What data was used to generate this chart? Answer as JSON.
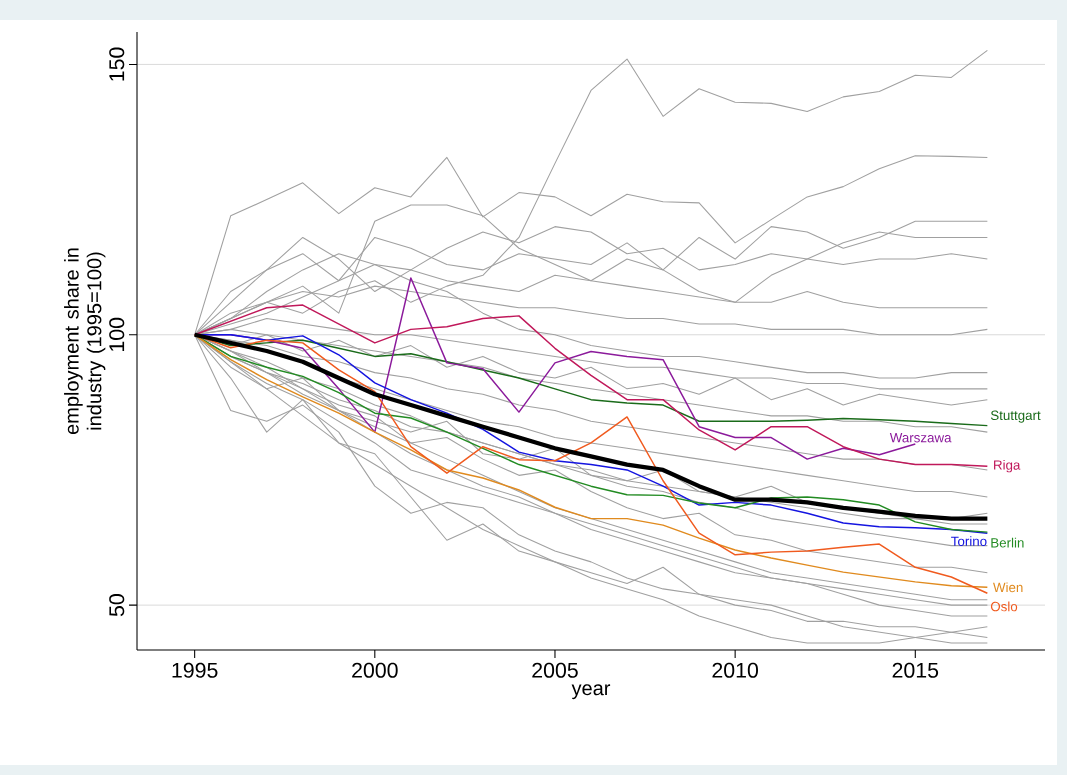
{
  "chart_data": {
    "type": "line",
    "xlabel": "year",
    "ylabel": "employment share in industry (1995=100)",
    "x": [
      1995,
      1996,
      1997,
      1998,
      1999,
      2000,
      2001,
      2002,
      2003,
      2004,
      2005,
      2006,
      2007,
      2008,
      2009,
      2010,
      2011,
      2012,
      2013,
      2014,
      2015,
      2016,
      2017
    ],
    "xlim": [
      1993.4,
      2018.6
    ],
    "ylim": [
      41.7,
      156
    ],
    "xticks": [
      1995,
      2000,
      2005,
      2010,
      2015
    ],
    "yticks": [
      50,
      100,
      150
    ],
    "grid": "y",
    "marker": "none",
    "line_style": "solid",
    "series": [
      {
        "color": "#a0a0a0",
        "values": [
          100,
          103,
          106,
          104,
          108,
          110,
          106,
          109,
          111,
          118,
          131.7,
          145.2,
          151,
          140.4,
          145.5,
          143,
          142.8,
          141.3,
          144,
          145,
          148,
          147.6,
          152.6
        ]
      },
      {
        "color": "#a0a0a0",
        "values": [
          100,
          122,
          125,
          128.1,
          122.4,
          127.2,
          125.5,
          132.8,
          121.8,
          126.3,
          125.5,
          122,
          126,
          124.6,
          124.4,
          117,
          121.3,
          125.5,
          127.4,
          130.7,
          133.1,
          133,
          132.8
        ]
      },
      {
        "color": "#a0a0a0",
        "values": [
          100,
          108,
          112,
          115,
          110,
          118,
          116,
          113,
          112,
          115,
          114,
          113,
          117,
          112,
          118,
          114,
          120,
          119,
          116,
          118,
          121,
          121,
          121
        ]
      },
      {
        "color": "#a0a0a0",
        "values": [
          100,
          104,
          106,
          109,
          104,
          121,
          124,
          124,
          122,
          116,
          113,
          110,
          114,
          112,
          108,
          106,
          111,
          114,
          117,
          119,
          118,
          118,
          118
        ]
      },
      {
        "color": "#a0a0a0",
        "values": [
          100,
          86,
          84,
          87,
          82,
          72,
          67,
          69,
          68,
          63,
          60,
          58,
          55,
          53,
          52,
          51,
          50,
          48,
          46,
          45,
          44,
          43,
          43
        ]
      },
      {
        "color": "#a0a0a0",
        "values": [
          100,
          92,
          82,
          88,
          80,
          78,
          70,
          62,
          65,
          60,
          58,
          56,
          54,
          57,
          52,
          50,
          49,
          47,
          47,
          46,
          46,
          45,
          44
        ]
      },
      {
        "color": "#a0a0a0",
        "values": [
          100,
          95,
          90,
          85,
          80,
          76,
          72,
          68,
          64,
          61,
          58,
          55,
          53,
          51,
          48,
          46,
          44,
          43,
          43,
          43,
          44,
          45,
          46
        ]
      },
      {
        "color": "#a0a0a0",
        "values": [
          100,
          96,
          93,
          89,
          86,
          82,
          78,
          75,
          72,
          70,
          67,
          65,
          63,
          61,
          59,
          57,
          55,
          54,
          53,
          52,
          51,
          50,
          50
        ]
      },
      {
        "color": "#a0a0a0",
        "values": [
          100,
          97,
          95,
          92,
          90,
          87,
          85,
          82,
          80,
          78,
          76,
          74,
          72,
          71,
          69,
          68,
          66,
          65,
          64,
          63,
          62,
          61,
          61
        ]
      },
      {
        "color": "#a0a0a0",
        "values": [
          100,
          99,
          98,
          96,
          95,
          93,
          92,
          90,
          89,
          87,
          86,
          84,
          83,
          82,
          81,
          80,
          79,
          78,
          77,
          77,
          76,
          76,
          75
        ]
      },
      {
        "color": "#a0a0a0",
        "values": [
          100,
          101,
          103,
          102,
          101,
          100,
          100,
          99,
          98,
          97,
          96,
          95,
          94,
          94,
          93,
          92,
          92,
          91,
          91,
          90,
          90,
          90,
          90
        ]
      },
      {
        "color": "#a0a0a0",
        "values": [
          100,
          103,
          106,
          108,
          107,
          109,
          108,
          107,
          106,
          105,
          105,
          104,
          103,
          103,
          102,
          102,
          101,
          101,
          101,
          100,
          100,
          100,
          101
        ]
      },
      {
        "color": "#a0a0a0",
        "values": [
          100,
          98,
          100,
          97,
          99,
          96,
          98,
          94,
          96,
          93,
          92,
          94,
          90,
          91,
          89,
          92,
          88,
          90,
          87,
          89,
          88,
          87,
          88
        ]
      },
      {
        "color": "#a0a0a0",
        "values": [
          100,
          94,
          90,
          92,
          86,
          84,
          82,
          84,
          78,
          77,
          79,
          74,
          73,
          75,
          71,
          70,
          72,
          69,
          68,
          67,
          66,
          66,
          67
        ]
      },
      {
        "color": "#a0a0a0",
        "values": [
          100,
          97,
          94,
          90,
          87,
          85,
          80,
          81,
          77,
          74,
          75,
          71,
          68,
          66,
          67,
          63,
          62,
          60,
          59,
          58,
          57,
          57,
          56
        ]
      },
      {
        "color": "#a0a0a0",
        "values": [
          100,
          102,
          104,
          107,
          110,
          113,
          112,
          116,
          119,
          117,
          120,
          119,
          115,
          116,
          112,
          113,
          115,
          114,
          113,
          114,
          114,
          115,
          114
        ]
      },
      {
        "color": "#a0a0a0",
        "values": [
          100,
          106,
          112,
          118,
          114,
          108,
          112,
          110,
          109,
          108,
          111,
          110,
          109,
          108,
          107,
          106,
          106,
          108,
          106,
          105,
          105,
          105,
          105
        ]
      },
      {
        "color": "#a0a0a0",
        "values": [
          100,
          95,
          91,
          88,
          84,
          80,
          75,
          73,
          71,
          69,
          67,
          64,
          62,
          60,
          58,
          56,
          55,
          54,
          52,
          50,
          49,
          48,
          48
        ]
      },
      {
        "color": "#a0a0a0",
        "values": [
          100,
          99,
          97,
          95,
          92,
          90,
          88,
          86,
          84,
          83,
          81,
          80,
          79,
          78,
          77,
          76,
          75,
          74,
          73,
          72,
          71,
          71,
          70
        ]
      },
      {
        "color": "#a0a0a0",
        "values": [
          100,
          101,
          100,
          99,
          98,
          97,
          96,
          95,
          94,
          92,
          91,
          90,
          89,
          88,
          87,
          86,
          85,
          85,
          84,
          84,
          83,
          83,
          82
        ]
      },
      {
        "color": "#a0a0a0",
        "values": [
          100,
          97,
          93,
          90,
          86,
          83,
          80,
          77,
          74,
          71,
          68,
          66,
          64,
          62,
          60,
          58,
          56,
          55,
          54,
          53,
          52,
          51,
          51
        ]
      },
      {
        "color": "#a0a0a0",
        "values": [
          100,
          103,
          108,
          112,
          115,
          113,
          110,
          108,
          104,
          101,
          100,
          98,
          97,
          96,
          96,
          95,
          94,
          93,
          93,
          92,
          92,
          93,
          93
        ]
      },
      {
        "color": "#a0a0a0",
        "values": [
          100,
          96,
          93,
          91,
          88,
          86,
          83,
          82,
          80,
          78,
          76,
          75,
          73,
          72,
          71,
          70,
          69,
          68,
          67,
          66,
          66,
          65,
          65
        ]
      },
      {
        "name": "Stuttgart",
        "color": "#1a6b1a",
        "values": [
          100,
          98,
          98.5,
          99,
          97.5,
          96,
          96.5,
          95,
          93.5,
          92,
          90,
          88,
          87.4,
          87,
          84,
          84,
          84,
          84.2,
          84.5,
          84.3,
          84,
          83.6,
          83.2
        ]
      },
      {
        "name": "Warszawa",
        "color": "#8b1a9b",
        "values": [
          100,
          100,
          99,
          97.5,
          90,
          82,
          110.5,
          94.8,
          93.7,
          85.7,
          94.8,
          96.9,
          96,
          95.4,
          83,
          81,
          81,
          77,
          79,
          77.8,
          79.8,
          null,
          null
        ]
      },
      {
        "name": "Riga",
        "color": "#c0185a",
        "values": [
          100,
          102.5,
          105,
          105.5,
          102,
          98.5,
          101,
          101.5,
          103,
          103.5,
          97.5,
          92.5,
          88,
          88,
          82.4,
          78.7,
          83,
          83,
          79.3,
          77,
          76,
          76,
          75.7
        ]
      },
      {
        "name": "Torino",
        "color": "#1414e0",
        "values": [
          100,
          100,
          99,
          99.8,
          96.3,
          91.1,
          88,
          85.5,
          82.5,
          78.3,
          76.7,
          76,
          75,
          72,
          68.5,
          69,
          68.5,
          67,
          65.2,
          64.5,
          64.3,
          64,
          63.3
        ]
      },
      {
        "name": "Berlin",
        "color": "#228b22",
        "values": [
          100,
          96,
          94,
          92.3,
          89.3,
          85.5,
          84.6,
          82,
          79,
          76,
          74,
          72,
          70.4,
          70.3,
          68.9,
          68,
          69.8,
          70,
          69.5,
          68.5,
          65.4,
          64,
          63.5
        ]
      },
      {
        "name": "Wien",
        "color": "#e08a1e",
        "values": [
          100,
          95.4,
          91.7,
          88.5,
          85.5,
          82,
          78.7,
          75,
          73.5,
          71.3,
          68.1,
          66,
          66,
          64.8,
          62.4,
          60.2,
          58.7,
          57.4,
          56.1,
          55.2,
          54.3,
          53.6,
          53.3
        ]
      },
      {
        "name": "Oslo",
        "color": "#f05a1e",
        "values": [
          100,
          97.6,
          99,
          98.5,
          93.5,
          89.5,
          79.3,
          74.4,
          79.3,
          76.9,
          76.7,
          80,
          84.8,
          73,
          63.3,
          59.3,
          59.8,
          60,
          60.7,
          61.3,
          57,
          55.2,
          52.2
        ]
      },
      {
        "color": "#000000",
        "values": [
          100,
          98.5,
          97,
          95,
          92,
          89,
          87,
          85,
          83,
          81,
          79,
          77.5,
          76,
          75,
          72,
          69.5,
          69.5,
          69,
          68,
          67.3,
          66.5,
          66,
          66
        ]
      }
    ]
  }
}
